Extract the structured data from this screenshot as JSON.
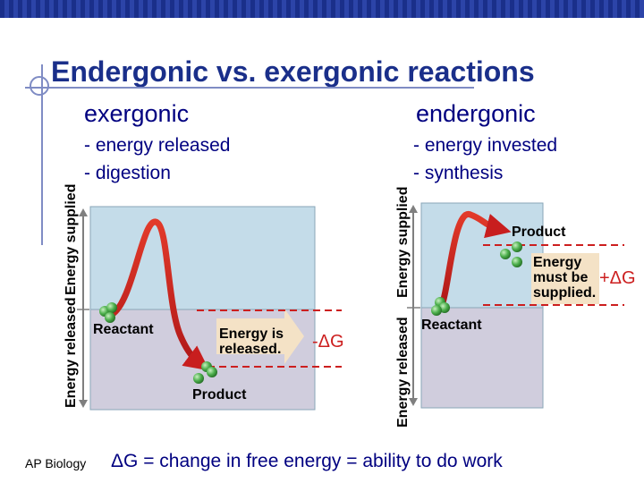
{
  "title": "Endergonic vs. exergonic reactions",
  "exergonic": {
    "heading": "exergonic",
    "bullets": [
      "- energy released",
      "- digestion"
    ],
    "axis_upper": "Energy supplied",
    "axis_lower": "Energy released",
    "reactant_label": "Reactant",
    "product_label": "Product",
    "callout_line1": "Energy is",
    "callout_line2": "released.",
    "delta_label": "-ΔG"
  },
  "endergonic": {
    "heading": "endergonic",
    "bullets": [
      "- energy invested",
      "- synthesis"
    ],
    "axis_upper": "Energy supplied",
    "axis_lower": "Energy released",
    "reactant_label": "Reactant",
    "product_label": "Product",
    "callout_line1": "Energy",
    "callout_line2": "must be",
    "callout_line3": "supplied.",
    "delta_label": "+ΔG"
  },
  "footer": {
    "source": "AP Biology",
    "equation": "ΔG = change in free energy = ability to do work"
  },
  "colors": {
    "navy": "#000080",
    "red": "#cc1f1f",
    "upper_panel": "#c4dce9",
    "lower_panel": "#d0cddd",
    "callout": "#f4e2c6",
    "molecule": "#4caf4c"
  }
}
